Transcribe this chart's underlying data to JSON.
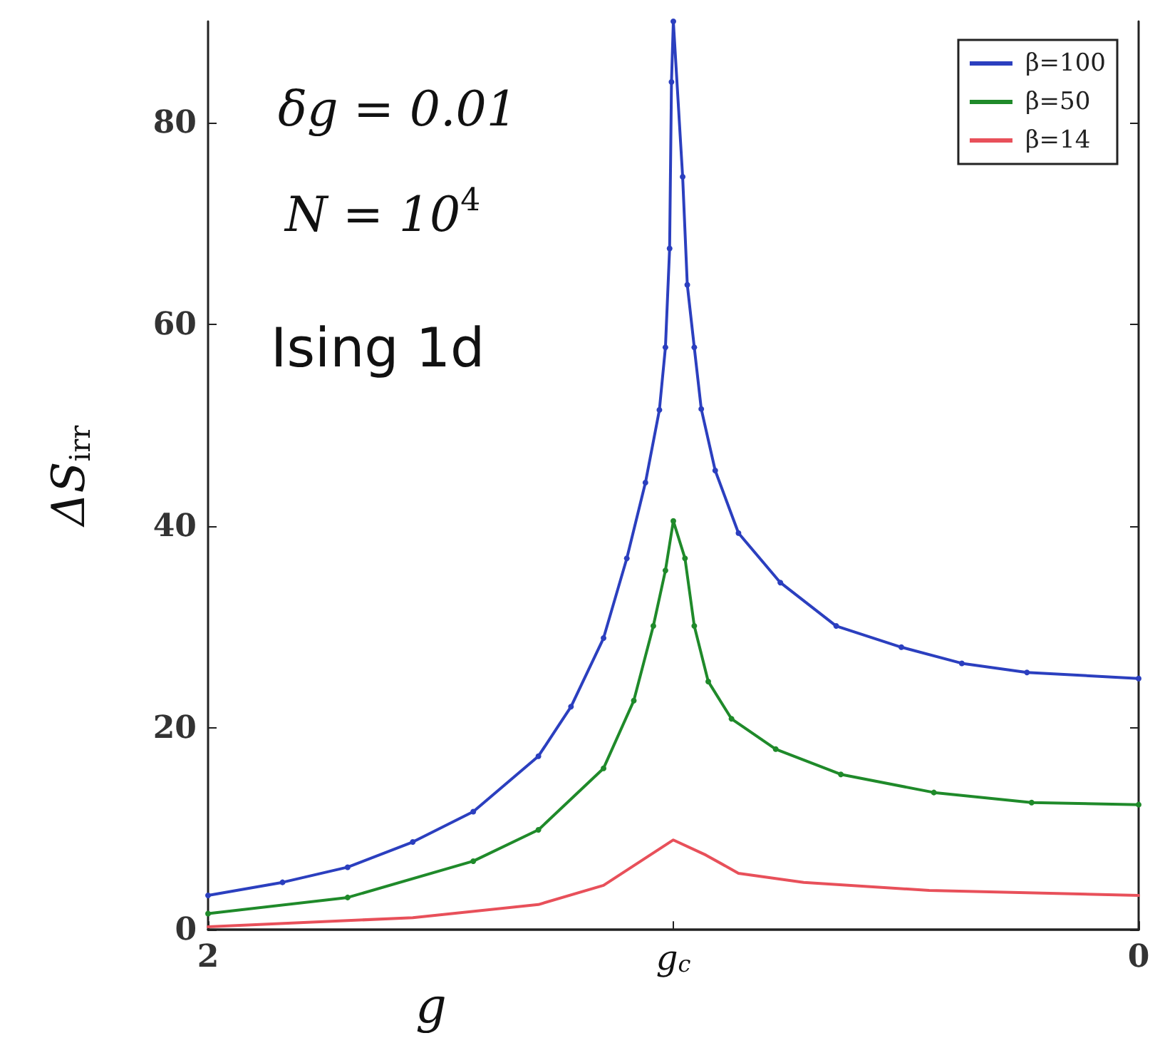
{
  "chart_data": {
    "type": "line",
    "xlabel": "g",
    "ylabel": "ΔS$_{irr}$",
    "annotations": [
      "δg = 0.01",
      "N = 10$^{4}$",
      "Ising 1d"
    ],
    "xlim": [
      2,
      0
    ],
    "xticks": [
      2,
      {
        "value": 1,
        "label": "g$_{c}$"
      },
      0
    ],
    "ylim": [
      0,
      90
    ],
    "yticks": [
      0,
      20,
      40,
      60,
      80
    ],
    "legend": "top right",
    "grid": false,
    "series": [
      {
        "name": "β=100",
        "color": "#2b3fbf",
        "marker": "circle",
        "x": [
          2,
          1.84,
          1.7,
          1.56,
          1.43,
          1.29,
          1.22,
          1.15,
          1.1,
          1.06,
          1.03,
          1.017,
          1.008,
          1.004,
          1.0,
          0.98,
          0.97,
          0.955,
          0.94,
          0.91,
          0.86,
          0.77,
          0.65,
          0.51,
          0.38,
          0.24,
          0
        ],
        "values": [
          3.4,
          4.7,
          6.2,
          8.7,
          11.7,
          17.2,
          22.1,
          28.9,
          36.8,
          44.3,
          51.5,
          57.7,
          67.5,
          84,
          90,
          74.6,
          63.9,
          57.7,
          51.6,
          45.5,
          39.3,
          34.4,
          30.1,
          28,
          26.4,
          25.5,
          24.9
        ]
      },
      {
        "name": "β=50",
        "color": "#1f8a2a",
        "marker": "circle",
        "x": [
          2,
          1.7,
          1.43,
          1.29,
          1.15,
          1.085,
          1.043,
          1.017,
          1.0,
          0.975,
          0.955,
          0.925,
          0.875,
          0.78,
          0.64,
          0.44,
          0.23,
          0
        ],
        "values": [
          1.6,
          3.2,
          6.8,
          9.9,
          16,
          22.7,
          30.1,
          35.6,
          40.5,
          36.8,
          30.1,
          24.6,
          20.9,
          17.9,
          15.4,
          13.6,
          12.6,
          12.4
        ]
      },
      {
        "name": "β=14",
        "color": "#e8505a",
        "marker": "none",
        "x": [
          2,
          1.56,
          1.29,
          1.15,
          1.07,
          1.0,
          0.93,
          0.86,
          0.72,
          0.45,
          0
        ],
        "values": [
          0.3,
          1.2,
          2.5,
          4.4,
          6.8,
          8.9,
          7.4,
          5.6,
          4.7,
          3.9,
          3.4
        ]
      }
    ]
  }
}
